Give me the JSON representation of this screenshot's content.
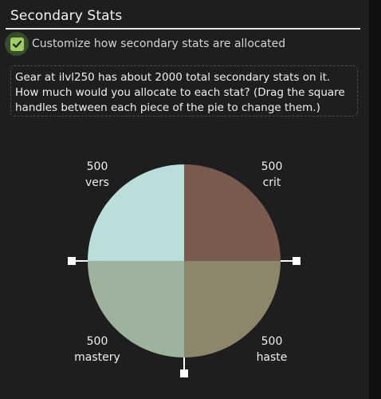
{
  "section": {
    "title": "Secondary Stats"
  },
  "customize": {
    "checked": true,
    "label": "Customize how secondary stats are allocated"
  },
  "info": {
    "text": "Gear at ilvl250 has about 2000 total secondary stats on it. How much would you allocate to each stat? (Drag the square handles between each piece of the pie to change them.)"
  },
  "pie": {
    "slices": [
      {
        "stat": "crit",
        "value": "500",
        "color": "#7a5a4e"
      },
      {
        "stat": "haste",
        "value": "500",
        "color": "#8c876a"
      },
      {
        "stat": "mastery",
        "value": "500",
        "color": "#9db39d"
      },
      {
        "stat": "vers",
        "value": "500",
        "color": "#b9dedb"
      }
    ],
    "handle_color": "#ffffff"
  },
  "colors": {
    "panel_bg": "#1e1e1e",
    "page_bg": "#111111",
    "checkbox_fill": "#9ccc65",
    "checkbox_halo": "#3a4a2c"
  }
}
